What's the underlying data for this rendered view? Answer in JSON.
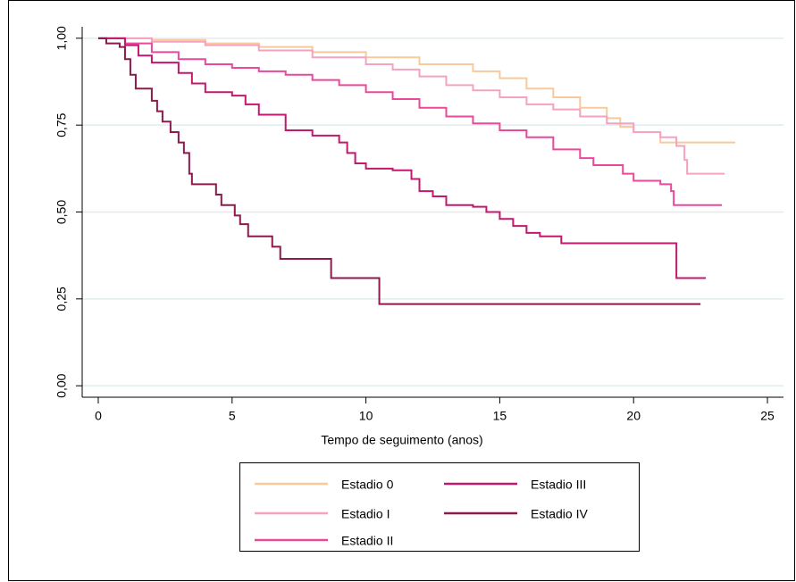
{
  "chart_data": {
    "type": "step",
    "x_label": "Tempo de seguimento (anos)",
    "xlim": [
      -0.6,
      25.6
    ],
    "xticks": [
      0,
      5,
      10,
      15,
      20,
      25
    ],
    "ylim": [
      -0.033,
      1.033
    ],
    "yticks": [
      {
        "value": 0,
        "label": "0,00"
      },
      {
        "value": 0.25,
        "label": "0,25"
      },
      {
        "value": 0.5,
        "label": "0,50"
      },
      {
        "value": 0.75,
        "label": "0,75"
      },
      {
        "value": 1,
        "label": "1,00"
      }
    ],
    "grid": true,
    "legend": "bottom",
    "series": [
      {
        "name": "Estadio 0",
        "color": "#f8c99b",
        "x": [
          0,
          2,
          4,
          6,
          8,
          10,
          12,
          14,
          15,
          16,
          17,
          18,
          19,
          19.5,
          20,
          21,
          23.8
        ],
        "values": [
          1,
          0.995,
          0.985,
          0.975,
          0.96,
          0.945,
          0.925,
          0.905,
          0.885,
          0.855,
          0.83,
          0.8,
          0.77,
          0.745,
          0.73,
          0.7,
          0.7
        ]
      },
      {
        "name": "Estadio I",
        "color": "#f3a2c2",
        "x": [
          0,
          2,
          4,
          6,
          8,
          10,
          11,
          12,
          13,
          14,
          15,
          16,
          17,
          18,
          19,
          20,
          21,
          21.6,
          21.9,
          22,
          23.4
        ],
        "values": [
          1,
          0.99,
          0.98,
          0.965,
          0.945,
          0.925,
          0.91,
          0.89,
          0.865,
          0.85,
          0.83,
          0.81,
          0.795,
          0.775,
          0.755,
          0.73,
          0.715,
          0.69,
          0.65,
          0.61,
          0.61
        ]
      },
      {
        "name": "Estadio II",
        "color": "#e9489b",
        "x": [
          0,
          1,
          2,
          3,
          4,
          5,
          6,
          7,
          8,
          9,
          10,
          11,
          12,
          13,
          14,
          15,
          16,
          17,
          18,
          18.5,
          19.6,
          20,
          21,
          21.4,
          21.5,
          23.3
        ],
        "values": [
          1,
          0.985,
          0.96,
          0.94,
          0.925,
          0.915,
          0.905,
          0.895,
          0.88,
          0.865,
          0.845,
          0.825,
          0.8,
          0.775,
          0.755,
          0.735,
          0.715,
          0.68,
          0.655,
          0.635,
          0.61,
          0.59,
          0.58,
          0.56,
          0.52,
          0.52
        ]
      },
      {
        "name": "Estadio III",
        "color": "#c2186d",
        "x": [
          0,
          1,
          1.5,
          2,
          3,
          3.5,
          4,
          5,
          5.5,
          6,
          7,
          8,
          9,
          9.3,
          9.6,
          10,
          11,
          11.7,
          12,
          12.5,
          13,
          14,
          14.5,
          15,
          15.5,
          16,
          16.5,
          17.3,
          21.6,
          22.7
        ],
        "values": [
          1,
          0.98,
          0.95,
          0.93,
          0.9,
          0.87,
          0.845,
          0.835,
          0.81,
          0.78,
          0.735,
          0.72,
          0.7,
          0.67,
          0.64,
          0.625,
          0.62,
          0.595,
          0.56,
          0.545,
          0.52,
          0.515,
          0.5,
          0.48,
          0.46,
          0.44,
          0.43,
          0.41,
          0.31,
          0.31
        ]
      },
      {
        "name": "Estadio IV",
        "color": "#8c1a4c",
        "x": [
          0,
          0.3,
          0.8,
          1,
          1.2,
          1.4,
          2,
          2.2,
          2.4,
          2.7,
          3,
          3.2,
          3.4,
          3.5,
          4.4,
          4.6,
          5.1,
          5.3,
          5.6,
          6.5,
          6.8,
          8.7,
          10.5,
          22.5
        ],
        "values": [
          1,
          0.985,
          0.975,
          0.94,
          0.895,
          0.855,
          0.82,
          0.79,
          0.76,
          0.73,
          0.7,
          0.67,
          0.61,
          0.58,
          0.55,
          0.52,
          0.49,
          0.465,
          0.43,
          0.4,
          0.365,
          0.31,
          0.235,
          0.235
        ]
      }
    ]
  }
}
